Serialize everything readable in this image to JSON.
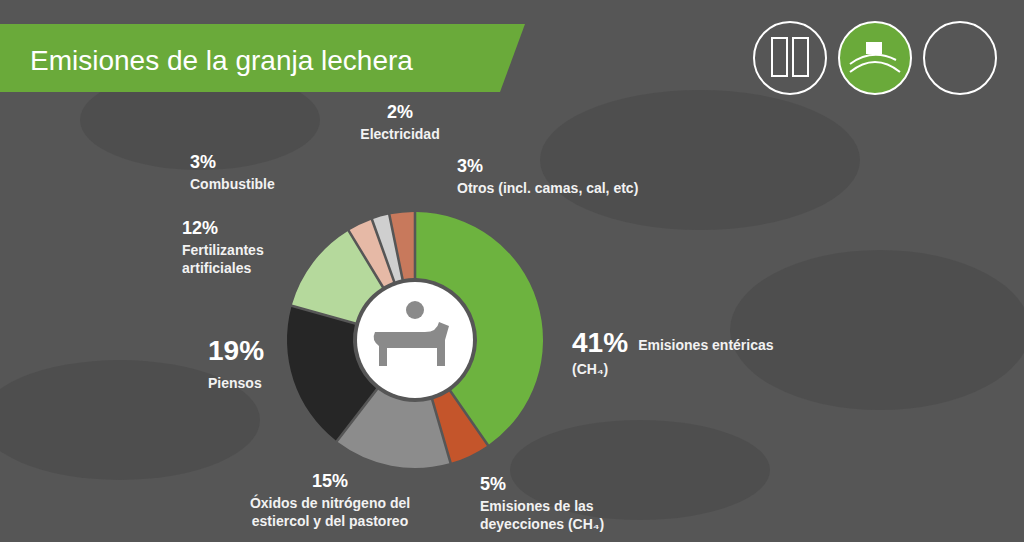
{
  "chart_data": {
    "type": "donut",
    "title": "Emisiones de la granja lechera",
    "categories": [
      "Emisiones entéricas (CH₄)",
      "Emisiones de las deyecciones (CH₄)",
      "Óxidos de nitrógeno del estiercol y del pastoreo",
      "Piensos",
      "Fertilizantes artificiales",
      "Combustible",
      "Electricidad",
      "Otros (incl. camas, cal, etc)"
    ],
    "values": [
      41,
      5,
      15,
      19,
      12,
      3,
      2,
      3
    ],
    "value_labels": [
      "41%",
      "5%",
      "15%",
      "19%",
      "12%",
      "3%",
      "2%",
      "3%"
    ],
    "colors": [
      "#6db33f",
      "#c4552b",
      "#8c8c8c",
      "#262626",
      "#b5d99c",
      "#e6b9a6",
      "#cfcfcf",
      "#c8795c"
    ],
    "data_labels": true
  }
}
